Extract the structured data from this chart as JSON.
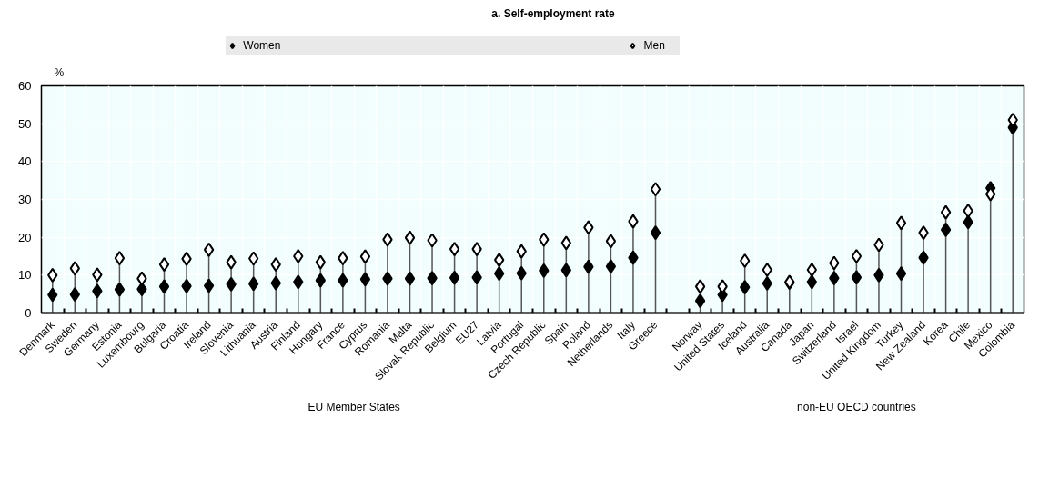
{
  "chart_data": {
    "type": "lollipop",
    "title": "a. Self-employment rate",
    "ylabel": "%",
    "categories": [
      "Denmark",
      "Sweden",
      "Germany",
      "Estonia",
      "Luxembourg",
      "Bulgaria",
      "Croatia",
      "Ireland",
      "Slovenia",
      "Lithuania",
      "Austria",
      "Finland",
      "Hungary",
      "France",
      "Cyprus",
      "Romania",
      "Malta",
      "Slovak Republic",
      "Belgium",
      "EU27",
      "Latvia",
      "Portugal",
      "Czech Republic",
      "Spain",
      "Poland",
      "Netherlands",
      "Italy",
      "Greece",
      null,
      "Norway",
      "United States",
      "Iceland",
      "Australia",
      "Canada",
      "Japan",
      "Switzerland",
      "Israel",
      "United Kingdom",
      "Turkey",
      "New Zealand",
      "Korea",
      "Chile",
      "Mexico",
      "Colombia"
    ],
    "series": [
      {
        "name": "Women",
        "color": "#000000",
        "values": [
          4.8,
          4.9,
          5.8,
          6.2,
          6.3,
          7.0,
          7.1,
          7.2,
          7.6,
          7.7,
          7.9,
          8.2,
          8.6,
          8.6,
          8.9,
          9.1,
          9.1,
          9.2,
          9.3,
          9.4,
          10.4,
          10.5,
          11.2,
          11.3,
          12.2,
          12.3,
          14.6,
          21.2,
          null,
          3.2,
          4.8,
          6.8,
          7.8,
          8.0,
          8.2,
          9.2,
          9.4,
          10.0,
          10.4,
          14.6,
          22.0,
          24.0,
          33.0,
          49.0
        ]
      },
      {
        "name": "Men",
        "color": "#ffffff",
        "values": [
          10.0,
          11.8,
          10.1,
          14.5,
          9.1,
          12.8,
          14.3,
          16.7,
          13.4,
          14.4,
          12.8,
          15.0,
          13.4,
          14.5,
          14.9,
          19.4,
          19.9,
          19.2,
          16.9,
          16.9,
          14.0,
          16.3,
          19.4,
          18.5,
          22.6,
          19.0,
          24.2,
          32.7,
          null,
          7.0,
          7.0,
          13.8,
          11.4,
          8.2,
          11.4,
          13.2,
          15.0,
          18.0,
          23.8,
          21.2,
          26.6,
          27.0,
          31.4,
          51.0
        ]
      }
    ],
    "marker": "diamond",
    "ylim": [
      0,
      60
    ],
    "yticks": [
      0,
      10,
      20,
      30,
      40,
      50,
      60
    ],
    "grid": true,
    "legend": "top",
    "annotations": [
      "EU Member States",
      "non-EU OECD countries"
    ]
  }
}
